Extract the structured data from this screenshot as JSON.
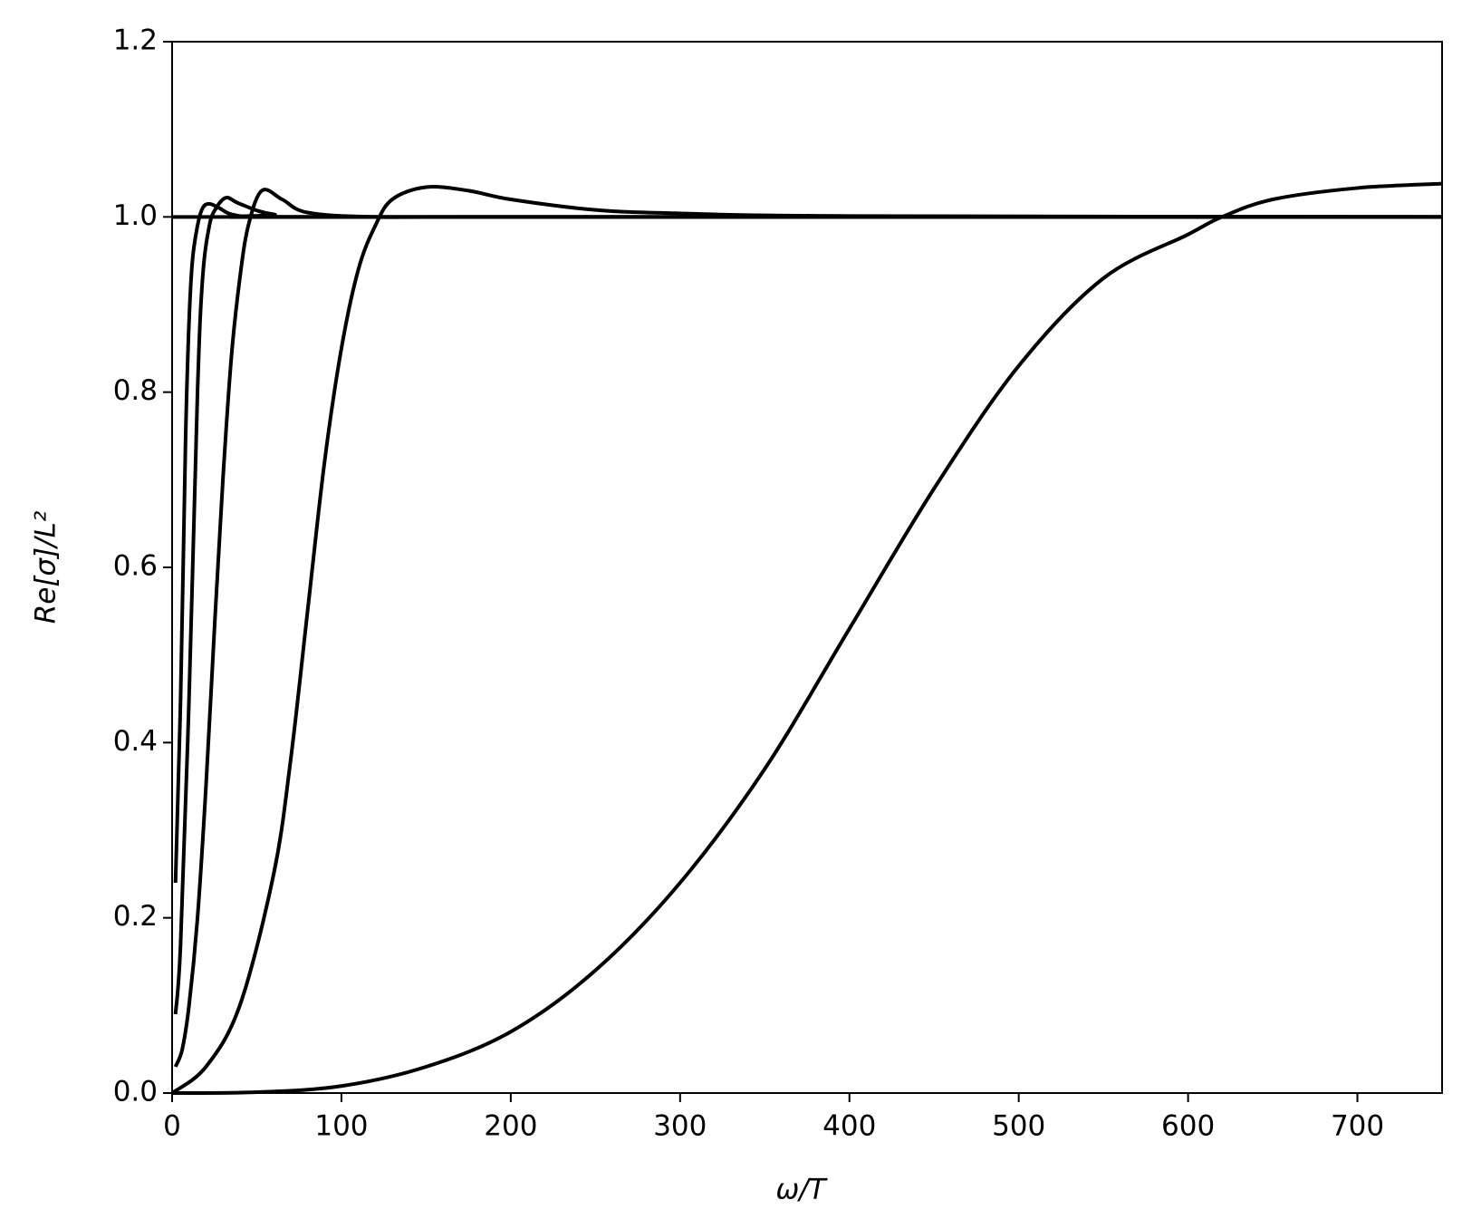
{
  "chart_data": {
    "type": "line",
    "xlabel": "ω/T",
    "ylabel": "Re[σ]/L²",
    "xlim": [
      0,
      750
    ],
    "xticks": [
      0,
      100,
      200,
      300,
      400,
      500,
      600,
      700
    ],
    "ylim": [
      0,
      1.2
    ],
    "yticks": [
      {
        "value": 0,
        "label": "0.0"
      },
      0.2,
      0.4,
      0.6,
      0.8,
      {
        "value": 1,
        "label": "1.0"
      },
      1.2
    ],
    "grid": false,
    "series": [
      {
        "color": "#000000",
        "x": [
          0,
          750
        ],
        "values": [
          1,
          1
        ]
      },
      {
        "color": "#000000",
        "x": [
          2,
          5,
          8,
          10,
          12,
          15,
          18,
          22,
          28,
          35,
          50,
          100,
          750
        ],
        "values": [
          0.24,
          0.45,
          0.75,
          0.88,
          0.95,
          0.99,
          1.01,
          1.015,
          1.01,
          1.003,
          1.0,
          1.0,
          1.0
        ]
      },
      {
        "color": "#000000",
        "x": [
          2,
          5,
          10,
          15,
          18,
          22,
          26,
          32,
          40,
          60,
          100,
          750
        ],
        "values": [
          0.09,
          0.17,
          0.45,
          0.8,
          0.93,
          0.99,
          1.01,
          1.022,
          1.015,
          1.003,
          1.0,
          1.0
        ]
      },
      {
        "color": "#000000",
        "x": [
          2,
          6,
          10,
          15,
          20,
          25,
          30,
          35,
          40,
          45,
          53,
          65,
          80,
          120,
          200,
          750
        ],
        "values": [
          0.03,
          0.05,
          0.1,
          0.2,
          0.35,
          0.53,
          0.7,
          0.84,
          0.93,
          0.99,
          1.03,
          1.02,
          1.005,
          1.0,
          1.0,
          1.0
        ]
      },
      {
        "color": "#000000",
        "x": [
          0,
          20,
          40,
          60,
          70,
          80,
          90,
          100,
          110,
          120,
          130,
          150,
          175,
          200,
          250,
          300,
          400,
          750
        ],
        "values": [
          0,
          0.03,
          0.1,
          0.25,
          0.38,
          0.55,
          0.72,
          0.85,
          0.94,
          0.99,
          1.02,
          1.034,
          1.03,
          1.02,
          1.008,
          1.004,
          1.001,
          1.0
        ]
      },
      {
        "color": "#000000",
        "x": [
          0,
          50,
          100,
          150,
          200,
          250,
          300,
          350,
          400,
          450,
          500,
          550,
          600,
          620,
          650,
          700,
          750
        ],
        "values": [
          0,
          0.001,
          0.008,
          0.03,
          0.07,
          0.14,
          0.24,
          0.37,
          0.53,
          0.69,
          0.83,
          0.93,
          0.98,
          1.0,
          1.02,
          1.033,
          1.038
        ]
      }
    ]
  }
}
